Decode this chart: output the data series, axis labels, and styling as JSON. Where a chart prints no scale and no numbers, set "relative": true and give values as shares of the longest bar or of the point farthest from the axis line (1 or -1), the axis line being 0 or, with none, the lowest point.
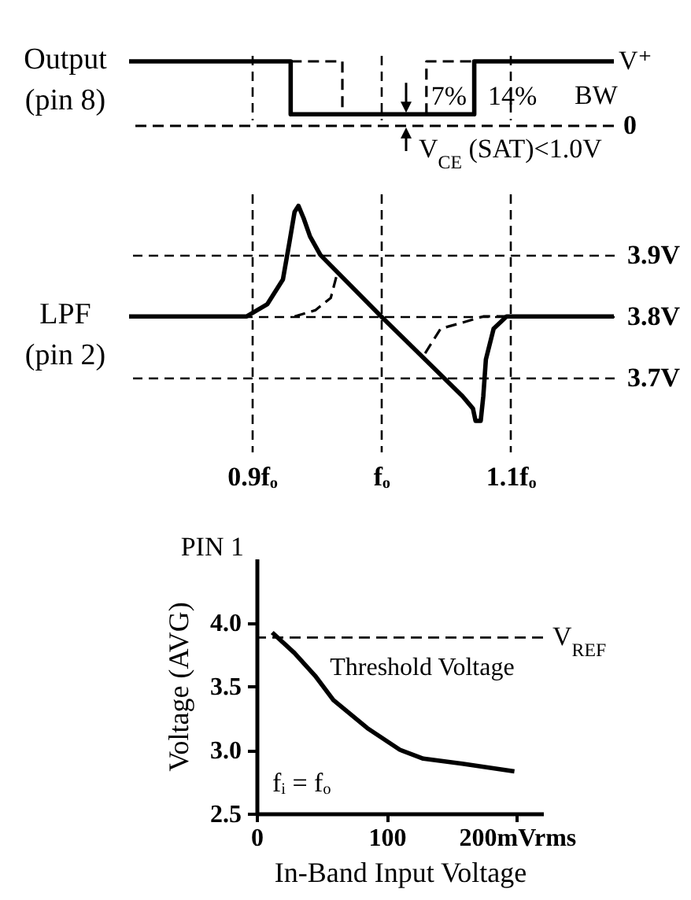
{
  "chart_data": [
    {
      "type": "line",
      "relative": true,
      "ylabel": "Output\n(pin 8)",
      "xlim": [
        0.805,
        1.18
      ],
      "xticks": [
        0.9,
        1,
        1.1
      ],
      "tick_labels": false,
      "grid": "x",
      "ref_lines": [
        {
          "axis": "y",
          "value": 0,
          "label": "0",
          "line_style": "dashed",
          "color": "#000000"
        }
      ],
      "series": [
        {
          "color": "#000000",
          "line_style": "solid",
          "x": [
            0.805,
            0.93,
            0.93,
            1.072,
            1.072,
            1.18
          ],
          "values": [
            1,
            1,
            0.18,
            0.18,
            1,
            1
          ]
        },
        {
          "color": "#000000",
          "line_style": "dashed",
          "x": [
            0.93,
            0.97,
            0.97
          ],
          "values": [
            1,
            1,
            0.18
          ]
        },
        {
          "color": "#000000",
          "line_style": "dashed",
          "x": [
            1.035,
            1.035,
            1.072
          ],
          "values": [
            0.18,
            1,
            1
          ]
        }
      ],
      "annotations": [
        {
          "text": "V⁺",
          "x": 1.18,
          "y": 1
        },
        {
          "text": "7%",
          "x": 1.035,
          "y": 0.45
        },
        {
          "text": "14%",
          "x": 1.079,
          "y": 0.45
        },
        "BW",
        "V$_{CE}$ (SAT)<1.0V"
      ]
    },
    {
      "type": "line",
      "ylabel": "LPF\n(pin 2)",
      "xlim": [
        0.805,
        1.18
      ],
      "xticks": [
        {
          "value": 0.9,
          "label": "0.9fₒ"
        },
        {
          "value": 1,
          "label": "fₒ"
        },
        {
          "value": 1.1,
          "label": "1.1fₒ"
        }
      ],
      "ylim": [
        3.58,
        4.0
      ],
      "yticks": [
        {
          "value": 3.9,
          "label": "3.9V"
        },
        {
          "value": 3.8,
          "label": "3.8V"
        },
        {
          "value": 3.7,
          "label": "3.7V"
        }
      ],
      "grid": true,
      "series": [
        {
          "color": "#000000",
          "line_style": "solid",
          "x": [
            0.805,
            0.896,
            0.912,
            0.924,
            0.929,
            0.933,
            0.936,
            0.94,
            0.945,
            0.953,
            1.0,
            1.063,
            1.071,
            1.073,
            1.077,
            1.079,
            1.081,
            1.087,
            1.097,
            1.111,
            1.18
          ],
          "values": [
            3.8,
            3.8,
            3.82,
            3.86,
            3.92,
            3.97,
            3.98,
            3.96,
            3.93,
            3.9,
            3.8,
            3.67,
            3.65,
            3.63,
            3.63,
            3.67,
            3.73,
            3.78,
            3.8,
            3.8,
            3.8
          ]
        },
        {
          "color": "#000000",
          "line_style": "dashed",
          "x": [
            0.933,
            0.949,
            0.961,
            0.966
          ],
          "values": [
            3.8,
            3.81,
            3.83,
            3.87
          ]
        },
        {
          "color": "#000000",
          "line_style": "dashed",
          "x": [
            1.034,
            1.046,
            1.063,
            1.079,
            1.111
          ],
          "values": [
            3.74,
            3.78,
            3.79,
            3.8,
            3.8
          ]
        }
      ]
    },
    {
      "type": "line",
      "title": "PIN 1",
      "xlabel": "In-Band Input Voltage",
      "ylabel": "Voltage (AVG)",
      "xlim": [
        0,
        220
      ],
      "xticks": [
        0,
        100,
        {
          "value": 200,
          "label": "200mVrms"
        }
      ],
      "ylim": [
        2.5,
        4.5
      ],
      "yticks": [
        2.5,
        {
          "value": 3,
          "label": "3.0"
        },
        3.5,
        {
          "value": 4,
          "label": "4.0"
        }
      ],
      "series": [
        {
          "name": "Threshold Voltage",
          "color": "#000000",
          "x": [
            12,
            29,
            45,
            59,
            85,
            110,
            128,
            158,
            198
          ],
          "values": [
            3.92,
            3.76,
            3.58,
            3.39,
            3.17,
            3.0,
            2.93,
            2.89,
            2.83
          ]
        }
      ],
      "ref_lines": [
        {
          "axis": "y",
          "value": 3.88,
          "label": "V$_{REF}$",
          "line_style": "dashed",
          "color": "#000000"
        }
      ],
      "annotations": [
        "fᵢ = fₒ"
      ]
    }
  ]
}
